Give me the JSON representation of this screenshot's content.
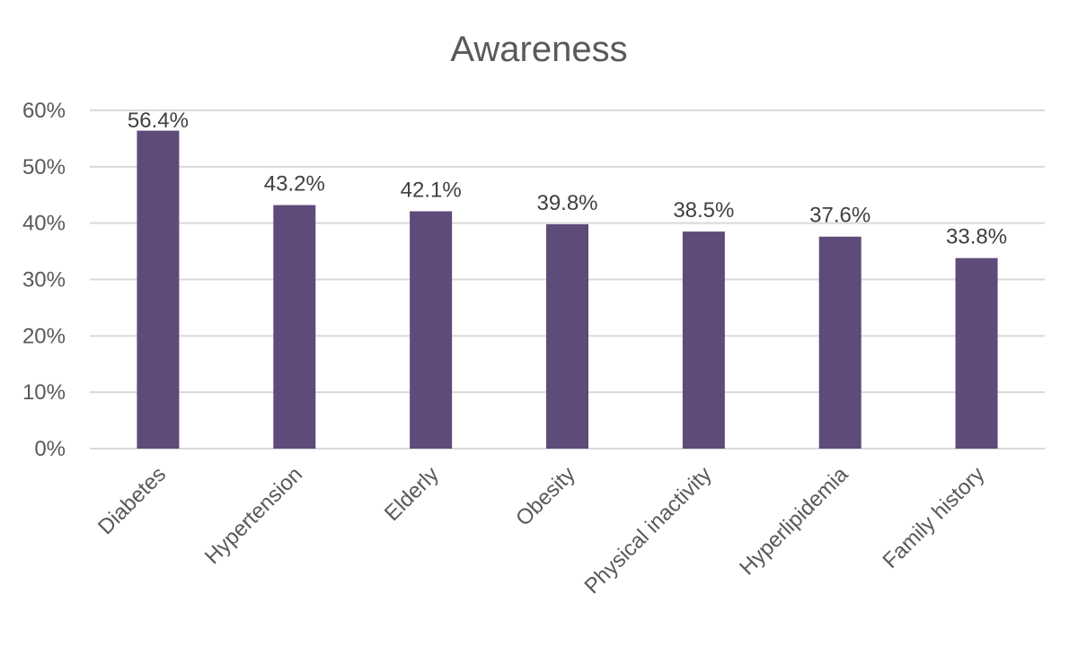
{
  "chart_data": {
    "type": "bar",
    "title": "Awareness",
    "categories": [
      "Diabetes",
      "Hypertension",
      "Elderly",
      "Obesity",
      "Physical inactivity",
      "Hyperlipidemia",
      "Family history"
    ],
    "values": [
      56.4,
      43.2,
      42.1,
      39.8,
      38.5,
      37.6,
      33.8
    ],
    "data_labels": [
      "56.4%",
      "43.2%",
      "42.1%",
      "39.8%",
      "38.5%",
      "37.6%",
      "33.8%"
    ],
    "ylim": [
      0,
      60
    ],
    "yticks": [
      0,
      10,
      20,
      30,
      40,
      50,
      60
    ],
    "ytick_labels": [
      "0%",
      "10%",
      "20%",
      "30%",
      "40%",
      "50%",
      "60%"
    ],
    "xlabel": "",
    "ylabel": "",
    "grid": true,
    "legend": "none",
    "bar_color": "#5e4b7a",
    "grid_color": "#d9d9d9",
    "text_color": "#595959",
    "label_color": "#404040"
  }
}
